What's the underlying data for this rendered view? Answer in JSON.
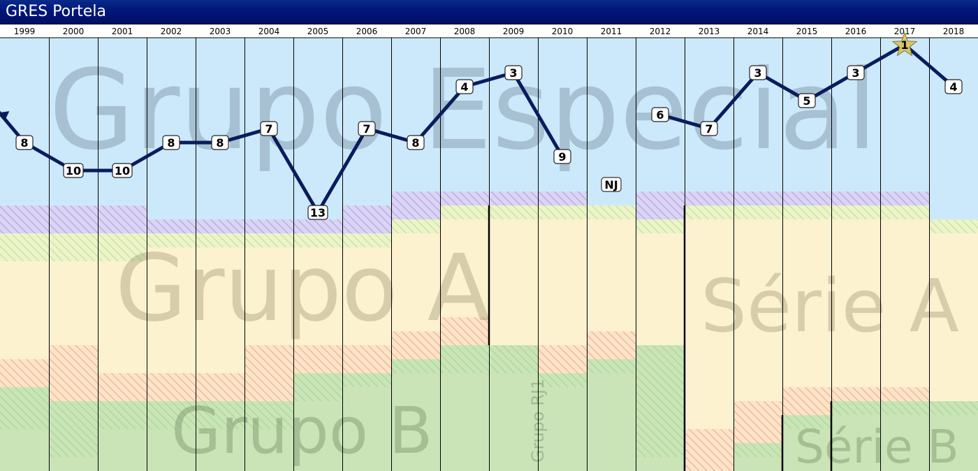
{
  "title": "GRES Portela",
  "chart_data": {
    "type": "line",
    "x": [
      "1999",
      "2000",
      "2001",
      "2002",
      "2003",
      "2004",
      "2005",
      "2006",
      "2007",
      "2008",
      "2009",
      "2010",
      "2011",
      "2012",
      "2013",
      "2014",
      "2015",
      "2016",
      "2017",
      "2018"
    ],
    "positions": [
      8,
      10,
      10,
      8,
      8,
      7,
      13,
      7,
      8,
      4,
      3,
      9,
      null,
      6,
      7,
      3,
      5,
      3,
      1,
      4
    ],
    "point_labels": [
      "8",
      "10",
      "10",
      "8",
      "8",
      "7",
      "13",
      "7",
      "8",
      "4",
      "3",
      "9",
      "NJ",
      "6",
      "7",
      "3",
      "5",
      "3",
      "1",
      "4"
    ],
    "y_inverted": true,
    "ylim": [
      1,
      19
    ],
    "champion_year": "2017",
    "line_color": "#0b1b5c",
    "zone_labels": {
      "grupo_especial": "Grupo Especial",
      "grupo_a": "Grupo A",
      "serie_a": "Série A",
      "grupo_b": "Grupo B",
      "grupo_rj1": "Grupo RJ1",
      "serie_b": "Série B"
    },
    "colors": {
      "especial": "#cce9fb",
      "a": "#fdf2d0",
      "b": "#cbe4b7",
      "relegation_hatch": "#c8a8e0",
      "promotion_hatch": "#bfe8a0",
      "star": "#d8c56a"
    }
  }
}
